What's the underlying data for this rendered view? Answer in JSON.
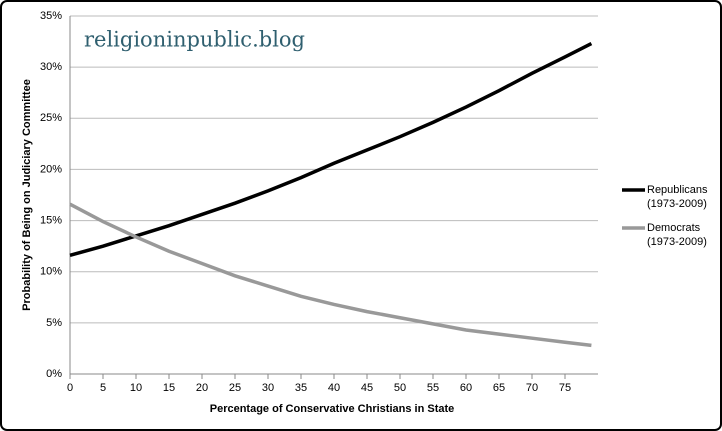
{
  "chart_data": {
    "type": "line",
    "watermark": "religioninpublic.blog",
    "x_label": "Percentage of Conservative Christians in State",
    "y_label": "Probability of Being on Judiciary Committee",
    "x": [
      0,
      5,
      10,
      15,
      20,
      25,
      30,
      35,
      40,
      45,
      50,
      55,
      60,
      65,
      70,
      75,
      79
    ],
    "series": [
      {
        "name": "Republicans\n(1973-2009)",
        "color": "#000000",
        "values": [
          11.6,
          12.5,
          13.5,
          14.5,
          15.6,
          16.7,
          17.9,
          19.2,
          20.6,
          21.9,
          23.2,
          24.6,
          26.1,
          27.7,
          29.4,
          31.0,
          32.3
        ]
      },
      {
        "name": "Democrats\n(1973-2009)",
        "color": "#999999",
        "values": [
          16.6,
          14.9,
          13.4,
          12.0,
          10.8,
          9.6,
          8.6,
          7.6,
          6.8,
          6.1,
          5.5,
          4.9,
          4.3,
          3.9,
          3.5,
          3.1,
          2.8
        ]
      }
    ],
    "xlim": [
      0,
      80
    ],
    "xticks": [
      0,
      5,
      10,
      15,
      20,
      25,
      30,
      35,
      40,
      45,
      50,
      55,
      60,
      65,
      70,
      75
    ],
    "ylim": [
      0,
      35
    ],
    "yticks": [
      {
        "value": 0,
        "label": "0%"
      },
      {
        "value": 5,
        "label": "5%"
      },
      {
        "value": 10,
        "label": "10%"
      },
      {
        "value": 15,
        "label": "15%"
      },
      {
        "value": 20,
        "label": "20%"
      },
      {
        "value": 25,
        "label": "25%"
      },
      {
        "value": 30,
        "label": "30%"
      },
      {
        "value": 35,
        "label": "35%"
      }
    ],
    "grid": true,
    "legend": "right"
  }
}
